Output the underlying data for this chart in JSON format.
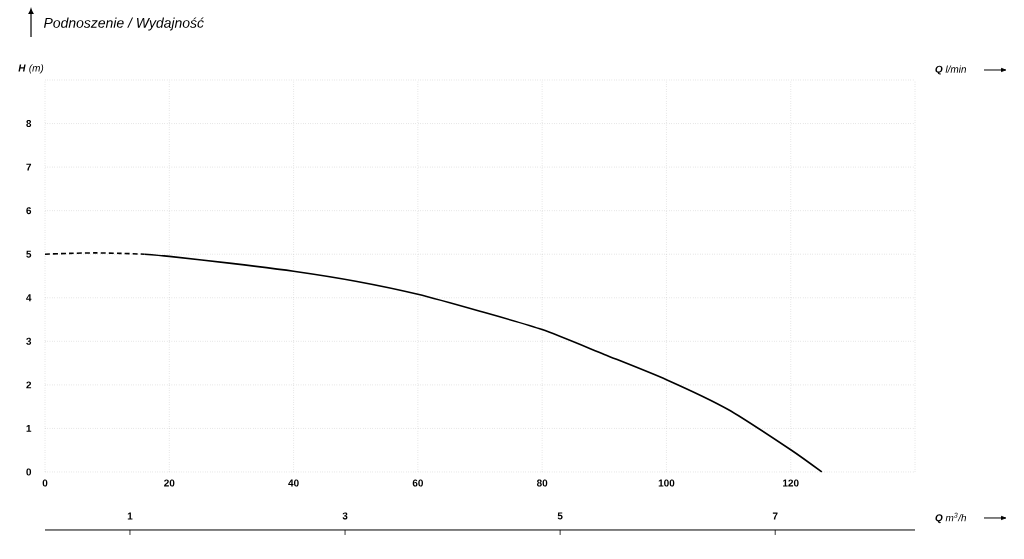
{
  "chart_data": {
    "type": "line",
    "title": "Podnoszenie / Wydajność",
    "ylabel": "**H** (m)",
    "xlabel": "**Q** l/min",
    "x2label": "**Q** m$^{3}$/h",
    "xlim": [
      0,
      140
    ],
    "xticks": [
      0,
      20,
      40,
      60,
      80,
      100,
      120,
      {
        "value": 140,
        "label": null
      }
    ],
    "ylim": [
      0,
      9
    ],
    "yticks": [
      0,
      1,
      2,
      3,
      4,
      5,
      6,
      7,
      8,
      {
        "value": 9,
        "label": null
      }
    ],
    "x2lim": [
      0.21,
      8.3
    ],
    "x2ticks": [
      1,
      3,
      5,
      7
    ],
    "grid": true,
    "series": [
      {
        "color": "#000000",
        "line_style": "dashed",
        "x": [
          0,
          4,
          8,
          12,
          16
        ],
        "values": [
          5.0,
          5.02,
          5.03,
          5.02,
          5.0
        ]
      },
      {
        "color": "#000000",
        "line_style": "solid",
        "x": [
          16,
          20,
          30,
          40,
          50,
          60,
          70,
          80,
          90,
          100,
          110,
          120,
          125
        ],
        "values": [
          5.0,
          4.95,
          4.79,
          4.61,
          4.38,
          4.08,
          3.69,
          3.27,
          2.7,
          2.12,
          1.43,
          0.51,
          0
        ]
      }
    ]
  }
}
